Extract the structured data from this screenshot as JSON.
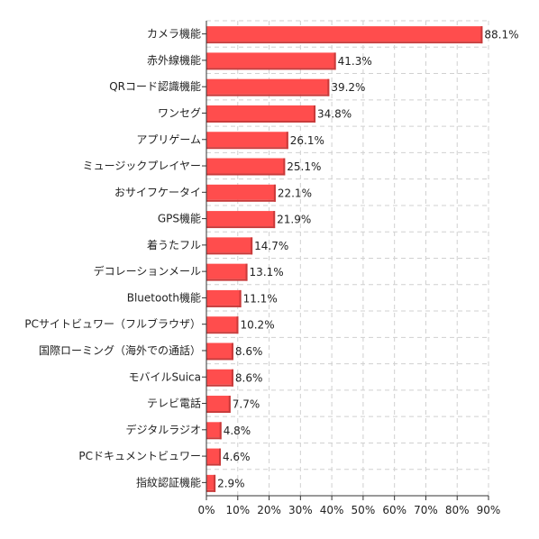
{
  "chart_data": {
    "type": "bar",
    "orientation": "horizontal",
    "categories": [
      "カメラ機能",
      "赤外線機能",
      "QRコード認識機能",
      "ワンセグ",
      "アプリゲーム",
      "ミュージックプレイヤー",
      "おサイフケータイ",
      "GPS機能",
      "着うたフル",
      "デコレーションメール",
      "Bluetooth機能",
      "PCサイトビュワー（フルブラウザ）",
      "国際ローミング（海外での通話）",
      "モバイルSuica",
      "テレビ電話",
      "デジタルラジオ",
      "PCドキュメントビュワー",
      "指紋認証機能"
    ],
    "values": [
      88.1,
      41.3,
      39.2,
      34.8,
      26.1,
      25.1,
      22.1,
      21.9,
      14.7,
      13.1,
      11.1,
      10.2,
      8.6,
      8.6,
      7.7,
      4.8,
      4.6,
      2.9
    ],
    "value_labels": [
      "88.1%",
      "41.3%",
      "39.2%",
      "34.8%",
      "26.1%",
      "25.1%",
      "22.1%",
      "21.9%",
      "14.7%",
      "13.1%",
      "11.1%",
      "10.2%",
      "8.6%",
      "8.6%",
      "7.7%",
      "4.8%",
      "4.6%",
      "2.9%"
    ],
    "x_ticks": [
      0,
      10,
      20,
      30,
      40,
      50,
      60,
      70,
      80,
      90
    ],
    "x_tick_labels": [
      "0%",
      "10%",
      "20%",
      "30%",
      "40%",
      "50%",
      "60%",
      "70%",
      "80%",
      "90%"
    ],
    "xlim": [
      0,
      90
    ],
    "grid": true,
    "bar_color": "#ff4d4d",
    "title": "",
    "xlabel": "",
    "ylabel": ""
  }
}
